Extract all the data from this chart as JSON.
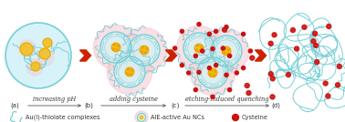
{
  "bg_color": "#ffffff",
  "fig_width": 3.78,
  "fig_height": 1.34,
  "dpi": 100,
  "arrow_labels": [
    "increasing pH",
    "adding cysteine",
    "etching-induced quenching"
  ],
  "step_labels": [
    "(a)",
    "(b)",
    "(c)",
    "(d)"
  ],
  "shell_color": "#72cdd4",
  "shell_fill": "#d6f2f5",
  "aura_color": "#f5c8d0",
  "nc_color": "#f5c020",
  "nc_inner": "#e8a000",
  "cys_color": "#cc1111",
  "arrow_color": "#cc2200",
  "line_color": "#555555",
  "label_color": "#333333",
  "text_fontsize": 4.8,
  "label_fontsize": 5.0,
  "legend_fontsize": 4.8
}
